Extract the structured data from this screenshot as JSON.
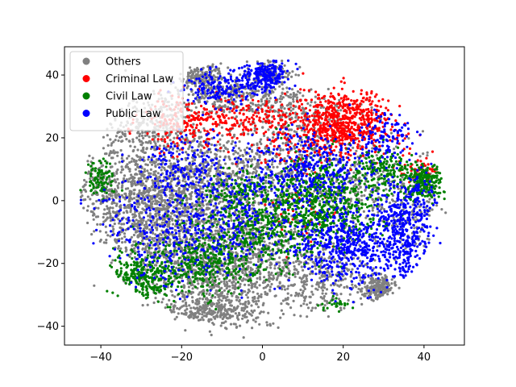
{
  "chart_data": {
    "type": "scatter",
    "title": "",
    "xlabel": "",
    "ylabel": "",
    "xlim": [
      -49,
      50
    ],
    "ylim": [
      -46,
      49
    ],
    "xticks": [
      -40,
      -20,
      0,
      20,
      40
    ],
    "yticks": [
      -40,
      -20,
      0,
      20,
      40
    ],
    "legend_position": "top-left",
    "grid": false,
    "series": [
      {
        "name": "Others",
        "color": "#808080",
        "clusters": [
          {
            "cx": -15,
            "cy": 40,
            "sx": 3,
            "sy": 3,
            "n": 160
          },
          {
            "cx": 2,
            "cy": 40,
            "sx": 3,
            "sy": 2.5,
            "n": 110
          },
          {
            "cx": -28,
            "cy": 24,
            "sx": 6,
            "sy": 5,
            "n": 280
          },
          {
            "cx": -8,
            "cy": 33,
            "sx": 8,
            "sy": 3,
            "n": 260
          },
          {
            "cx": -30,
            "cy": 3,
            "sx": 6,
            "sy": 8,
            "n": 550
          },
          {
            "cx": -15,
            "cy": 5,
            "sx": 8,
            "sy": 10,
            "n": 700
          },
          {
            "cx": -22,
            "cy": -10,
            "sx": 9,
            "sy": 8,
            "n": 650
          },
          {
            "cx": -10,
            "cy": -25,
            "sx": 9,
            "sy": 7,
            "n": 650
          },
          {
            "cx": -15,
            "cy": -36,
            "sx": 7,
            "sy": 3,
            "n": 250
          },
          {
            "cx": 3,
            "cy": 10,
            "sx": 10,
            "sy": 7,
            "n": 450
          },
          {
            "cx": 15,
            "cy": -25,
            "sx": 6,
            "sy": 6,
            "n": 280
          },
          {
            "cx": 0,
            "cy": -15,
            "sx": 8,
            "sy": 8,
            "n": 350
          },
          {
            "cx": 29,
            "cy": -28,
            "sx": 2.5,
            "sy": 2,
            "n": 180
          },
          {
            "cx": 25,
            "cy": 2,
            "sx": 5,
            "sy": 10,
            "n": 220
          },
          {
            "cx": 8,
            "cy": 28,
            "sx": 7,
            "sy": 4,
            "n": 200
          },
          {
            "cx": 38,
            "cy": 0,
            "sx": 4,
            "sy": 8,
            "n": 150
          },
          {
            "cx": -40,
            "cy": 3,
            "sx": 2.5,
            "sy": 7,
            "n": 120
          }
        ]
      },
      {
        "name": "Criminal Law",
        "color": "#ff0000",
        "clusters": [
          {
            "cx": 20,
            "cy": 25,
            "sx": 6,
            "sy": 5,
            "n": 700
          },
          {
            "cx": -5,
            "cy": 26,
            "sx": 7,
            "sy": 3,
            "n": 180
          },
          {
            "cx": -20,
            "cy": 25,
            "sx": 5,
            "sy": 5,
            "n": 160
          },
          {
            "cx": 38,
            "cy": 10,
            "sx": 3,
            "sy": 2,
            "n": 50
          },
          {
            "cx": 8,
            "cy": 16,
            "sx": 5,
            "sy": 3,
            "n": 60
          },
          {
            "cx": 10,
            "cy": -3,
            "sx": 6,
            "sy": 6,
            "n": 50
          }
        ]
      },
      {
        "name": "Civil Law",
        "color": "#008000",
        "clusters": [
          {
            "cx": 15,
            "cy": 0,
            "sx": 7,
            "sy": 7,
            "n": 650
          },
          {
            "cx": 0,
            "cy": -10,
            "sx": 8,
            "sy": 6,
            "n": 400
          },
          {
            "cx": -15,
            "cy": -20,
            "sx": 7,
            "sy": 5,
            "n": 350
          },
          {
            "cx": 40,
            "cy": 6,
            "sx": 2.5,
            "sy": 3,
            "n": 220
          },
          {
            "cx": 30,
            "cy": 10,
            "sx": 3,
            "sy": 3,
            "n": 150
          },
          {
            "cx": -30,
            "cy": -25,
            "sx": 4,
            "sy": 4,
            "n": 260
          },
          {
            "cx": -40,
            "cy": 7,
            "sx": 2,
            "sy": 3,
            "n": 90
          },
          {
            "cx": -5,
            "cy": 3,
            "sx": 6,
            "sy": 3,
            "n": 150
          },
          {
            "cx": 18,
            "cy": -33,
            "sx": 2,
            "sy": 1,
            "n": 25
          }
        ]
      },
      {
        "name": "Public Law",
        "color": "#0000ff",
        "clusters": [
          {
            "cx": 35,
            "cy": -10,
            "sx": 4,
            "sy": 9,
            "n": 500
          },
          {
            "cx": 20,
            "cy": -15,
            "sx": 6,
            "sy": 6,
            "n": 450
          },
          {
            "cx": 1,
            "cy": 40,
            "sx": 3,
            "sy": 2.5,
            "n": 220
          },
          {
            "cx": -10,
            "cy": 36,
            "sx": 5,
            "sy": 3,
            "n": 180
          },
          {
            "cx": 12,
            "cy": 10,
            "sx": 7,
            "sy": 6,
            "n": 350
          },
          {
            "cx": -5,
            "cy": -5,
            "sx": 8,
            "sy": 10,
            "n": 300
          },
          {
            "cx": -25,
            "cy": -10,
            "sx": 8,
            "sy": 9,
            "n": 280
          },
          {
            "cx": -20,
            "cy": 10,
            "sx": 6,
            "sy": 6,
            "n": 180
          },
          {
            "cx": 30,
            "cy": 20,
            "sx": 4,
            "sy": 4,
            "n": 120
          }
        ]
      }
    ]
  }
}
